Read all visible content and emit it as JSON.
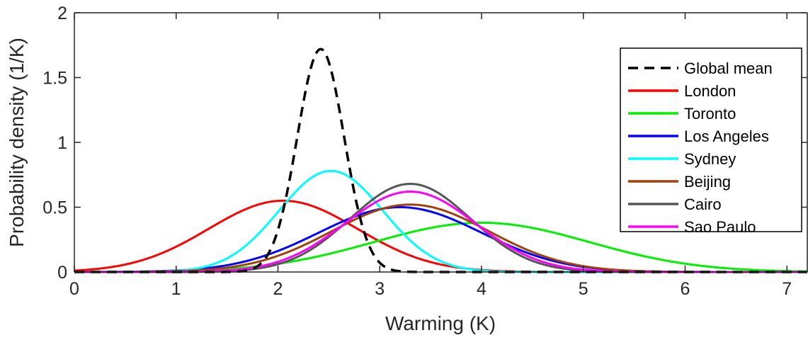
{
  "chart_data": {
    "type": "line",
    "title": "",
    "xlabel": "Warming (K)",
    "ylabel": "Probability density (1/K)",
    "xlim": [
      0,
      7.2
    ],
    "ylim": [
      0,
      2
    ],
    "xticks": [
      "0",
      "1",
      "2",
      "3",
      "4",
      "5",
      "6",
      "7"
    ],
    "yticks": [
      "0",
      "0.5",
      "1",
      "1.5",
      "2"
    ],
    "grid": false,
    "legend_position": "top-right",
    "series": [
      {
        "name": "Global mean",
        "color": "#000000",
        "dashed": true,
        "distribution": "normal",
        "mean": 2.42,
        "sd": 0.23,
        "peak": 1.72
      },
      {
        "name": "London",
        "color": "#ff0000",
        "dashed": false,
        "distribution": "normal",
        "mean": 2.05,
        "sd": 0.73,
        "peak": 0.55
      },
      {
        "name": "Toronto",
        "color": "#00ee00",
        "dashed": false,
        "distribution": "normal",
        "mean": 4.0,
        "sd": 1.06,
        "peak": 0.38
      },
      {
        "name": "Los Angeles",
        "color": "#0000ff",
        "dashed": false,
        "distribution": "normal",
        "mean": 3.2,
        "sd": 0.8,
        "peak": 0.5
      },
      {
        "name": "Sydney",
        "color": "#00ffff",
        "dashed": false,
        "distribution": "normal",
        "mean": 2.52,
        "sd": 0.51,
        "peak": 0.78
      },
      {
        "name": "Beijing",
        "color": "#a0400a",
        "dashed": false,
        "distribution": "normal",
        "mean": 3.3,
        "sd": 0.77,
        "peak": 0.52
      },
      {
        "name": "Cairo",
        "color": "#555555",
        "dashed": false,
        "distribution": "normal",
        "mean": 3.3,
        "sd": 0.59,
        "peak": 0.68
      },
      {
        "name": "Sao Paulo",
        "color": "#ff00ff",
        "dashed": false,
        "distribution": "normal",
        "mean": 3.3,
        "sd": 0.64,
        "peak": 0.62
      }
    ]
  }
}
